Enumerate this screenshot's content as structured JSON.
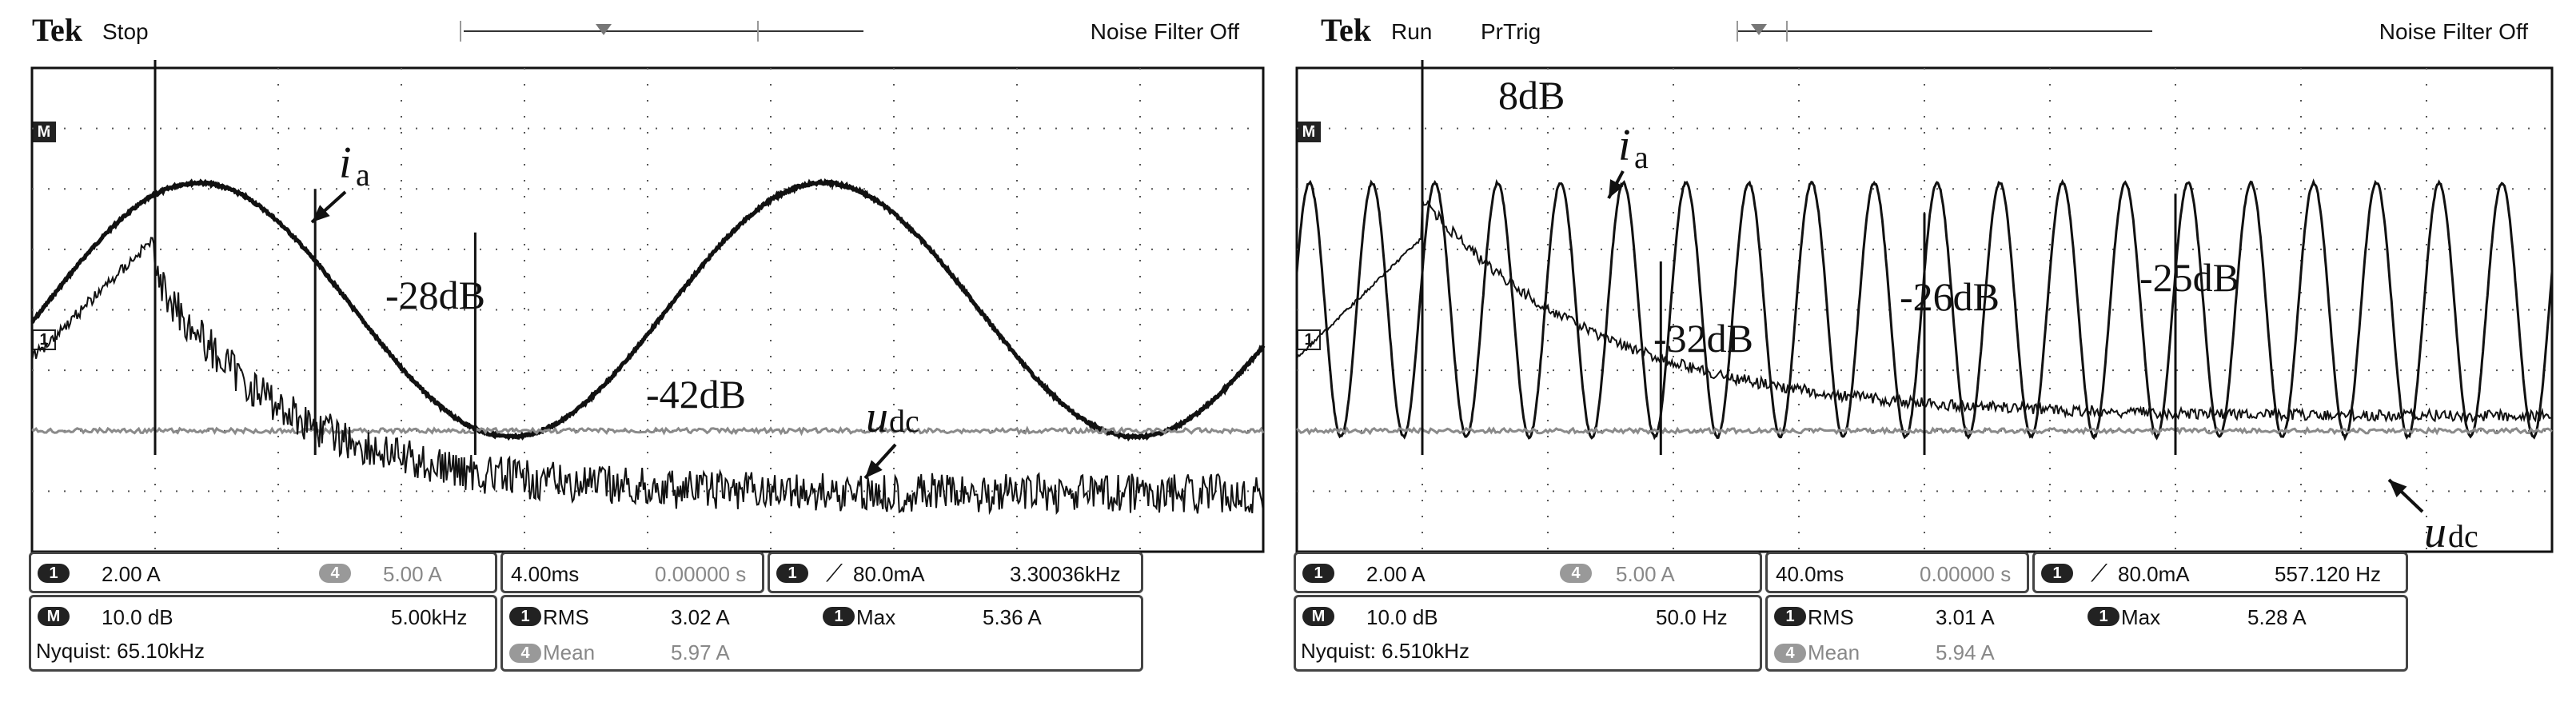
{
  "scopes": [
    {
      "brand": "Tek",
      "state": "Stop",
      "trigger_mode": "",
      "noise_filter": "Noise Filter Off",
      "ref_m": "M",
      "ref_1": "1",
      "ref_4": "4",
      "annotations": {
        "ia": "i",
        "ia_sub": "a",
        "udc": "u",
        "udc_sub": "dc",
        "peaks": [
          "-28dB",
          "-42dB"
        ]
      },
      "readout": {
        "ch1_scale": "2.00 A",
        "ch4_scale": "5.00 A",
        "timebase": "4.00ms",
        "delay": "0.00000 s",
        "trigger_level": "80.0mA",
        "trigger_freq": "3.30036kHz",
        "math_scale": "10.0 dB",
        "math_freq": "5.00kHz",
        "nyquist": "Nyquist: 65.10kHz",
        "rms_label": "RMS",
        "rms_value": "3.02 A",
        "mean_label": "Mean",
        "mean_value": "5.97 A",
        "max_label": "Max",
        "max_value": "5.36 A"
      },
      "chart_data": {
        "type": "line",
        "series": [
          {
            "name": "ia",
            "kind": "sine",
            "periods_visible": 1.97,
            "amplitude_div": 2.1,
            "offset_div": 0
          },
          {
            "name": "udc",
            "kind": "flat",
            "level_div": -2.0
          },
          {
            "name": "math_fft",
            "kind": "fft_decay",
            "peaks": [
              {
                "x_div": 1.0,
                "label": "spike"
              },
              {
                "x_div": 2.3,
                "label": "-28dB"
              },
              {
                "x_div": 3.6,
                "label": "-42dB"
              }
            ]
          }
        ],
        "grid": true,
        "divisions_x": 10,
        "divisions_y": 8
      }
    },
    {
      "brand": "Tek",
      "state": "Run",
      "trigger_mode": "PrTrig",
      "noise_filter": "Noise Filter Off",
      "ref_m": "M",
      "ref_1": "1",
      "ref_4": "4",
      "annotations": {
        "ia": "i",
        "ia_sub": "a",
        "udc": "u",
        "udc_sub": "dc",
        "peaks": [
          "8dB",
          "-32dB",
          "-26dB",
          "-25dB"
        ]
      },
      "readout": {
        "ch1_scale": "2.00 A",
        "ch4_scale": "5.00 A",
        "timebase": "40.0ms",
        "delay": "0.00000 s",
        "trigger_level": "80.0mA",
        "trigger_freq": "557.120 Hz",
        "math_scale": "10.0 dB",
        "math_freq": "50.0 Hz",
        "nyquist": "Nyquist: 6.510kHz",
        "rms_label": "RMS",
        "rms_value": "3.01 A",
        "mean_label": "Mean",
        "mean_value": "5.94 A",
        "max_label": "Max",
        "max_value": "5.28 A"
      },
      "chart_data": {
        "type": "line",
        "series": [
          {
            "name": "ia",
            "kind": "sine",
            "periods_visible": 20,
            "amplitude_div": 2.1,
            "offset_div": 0
          },
          {
            "name": "udc",
            "kind": "flat",
            "level_div": -2.0
          },
          {
            "name": "math_fft",
            "kind": "fft_decay",
            "peaks": [
              {
                "x_div": 1.0,
                "label": "8dB"
              },
              {
                "x_div": 2.9,
                "label": "-32dB"
              },
              {
                "x_div": 5.0,
                "label": "-26dB"
              },
              {
                "x_div": 7.0,
                "label": "-25dB"
              }
            ]
          }
        ],
        "grid": true,
        "divisions_x": 10,
        "divisions_y": 8
      }
    }
  ],
  "colors": {
    "trace": "#111111",
    "udc": "#8a8a8a",
    "grid": "#555555",
    "frame": "#111111"
  }
}
